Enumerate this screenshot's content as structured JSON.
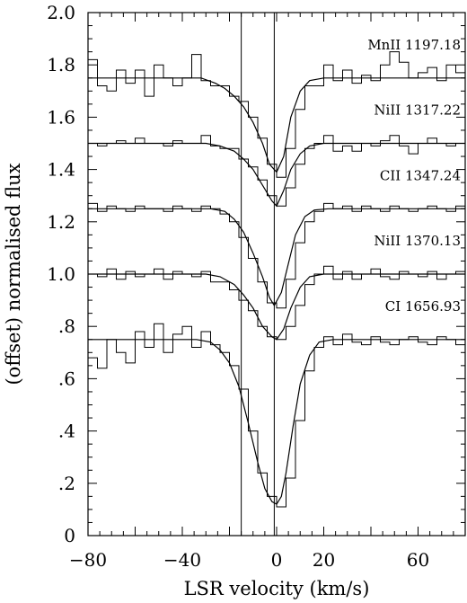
{
  "chart_data": {
    "type": "line",
    "xlabel": "LSR velocity (km/s)",
    "ylabel": "(offset) normalised flux",
    "xlim": [
      -80,
      80
    ],
    "ylim": [
      0,
      2.0
    ],
    "x_ticks": [
      -80,
      -40,
      0,
      20,
      60
    ],
    "x_tick_labels": [
      "−80",
      "−40",
      "0",
      "20",
      "60"
    ],
    "y_ticks": [
      0,
      0.2,
      0.4,
      0.6,
      0.8,
      1.0,
      1.2,
      1.4,
      1.6,
      1.8,
      2.0
    ],
    "y_tick_labels": [
      "0",
      ".2",
      ".4",
      ".6",
      ".8",
      "1.0",
      "1.2",
      "1.4",
      "1.6",
      "1.8",
      "2.0"
    ],
    "vertical_lines": [
      -15,
      -1
    ],
    "series": [
      {
        "name": "MnII 1197.18",
        "continuum": 1.75,
        "model_x": [
          -80,
          -32,
          -26,
          -22,
          -18,
          -14,
          -10,
          -6,
          -3,
          0,
          3,
          6,
          10,
          14,
          20,
          80
        ],
        "model_y": [
          1.75,
          1.75,
          1.73,
          1.71,
          1.68,
          1.64,
          1.58,
          1.5,
          1.42,
          1.39,
          1.45,
          1.6,
          1.7,
          1.74,
          1.75,
          1.75
        ],
        "data_x": [
          -80,
          -76,
          -72,
          -68,
          -64,
          -60,
          -56,
          -52,
          -48,
          -44,
          -40,
          -36,
          -32,
          -28,
          -24,
          -20,
          -16,
          -12,
          -8,
          -4,
          0,
          4,
          8,
          12,
          16,
          20,
          24,
          28,
          32,
          36,
          40,
          44,
          48,
          52,
          56,
          60,
          64,
          68,
          72,
          76
        ],
        "data_y": [
          1.82,
          1.72,
          1.7,
          1.78,
          1.73,
          1.78,
          1.68,
          1.8,
          1.75,
          1.72,
          1.75,
          1.84,
          1.74,
          1.72,
          1.72,
          1.68,
          1.66,
          1.6,
          1.52,
          1.42,
          1.37,
          1.48,
          1.63,
          1.72,
          1.72,
          1.8,
          1.74,
          1.78,
          1.73,
          1.76,
          1.74,
          1.8,
          1.85,
          1.81,
          1.75,
          1.77,
          1.79,
          1.74,
          1.8,
          1.77
        ]
      },
      {
        "name": "NiII 1317.22",
        "continuum": 1.5,
        "model_x": [
          -80,
          -30,
          -24,
          -18,
          -14,
          -10,
          -6,
          -2,
          0,
          3,
          6,
          10,
          14,
          20,
          80
        ],
        "model_y": [
          1.5,
          1.5,
          1.49,
          1.47,
          1.44,
          1.4,
          1.34,
          1.28,
          1.26,
          1.32,
          1.4,
          1.46,
          1.49,
          1.5,
          1.5
        ],
        "data_x": [
          -80,
          -76,
          -72,
          -68,
          -64,
          -60,
          -56,
          -52,
          -48,
          -44,
          -40,
          -36,
          -32,
          -28,
          -24,
          -20,
          -16,
          -12,
          -8,
          -4,
          0,
          4,
          8,
          12,
          16,
          20,
          24,
          28,
          32,
          36,
          40,
          44,
          48,
          52,
          56,
          60,
          64,
          68,
          72,
          76
        ],
        "data_y": [
          1.5,
          1.49,
          1.5,
          1.51,
          1.5,
          1.52,
          1.5,
          1.5,
          1.49,
          1.51,
          1.5,
          1.5,
          1.53,
          1.49,
          1.48,
          1.48,
          1.44,
          1.41,
          1.36,
          1.3,
          1.26,
          1.33,
          1.42,
          1.48,
          1.5,
          1.53,
          1.47,
          1.49,
          1.47,
          1.5,
          1.49,
          1.51,
          1.53,
          1.49,
          1.46,
          1.5,
          1.52,
          1.5,
          1.49,
          1.5
        ]
      },
      {
        "name": "CII 1347.24",
        "continuum": 1.25,
        "model_x": [
          -80,
          -28,
          -22,
          -18,
          -14,
          -10,
          -6,
          -3,
          -1,
          2,
          5,
          8,
          12,
          16,
          22,
          80
        ],
        "model_y": [
          1.25,
          1.25,
          1.24,
          1.21,
          1.16,
          1.08,
          0.99,
          0.91,
          0.88,
          0.93,
          1.04,
          1.15,
          1.22,
          1.245,
          1.25,
          1.25
        ],
        "data_x": [
          -80,
          -76,
          -72,
          -68,
          -64,
          -60,
          -56,
          -52,
          -48,
          -44,
          -40,
          -36,
          -32,
          -28,
          -24,
          -20,
          -16,
          -12,
          -8,
          -4,
          0,
          4,
          8,
          12,
          16,
          20,
          24,
          28,
          32,
          36,
          40,
          44,
          48,
          52,
          56,
          60,
          64,
          68,
          72,
          76
        ],
        "data_y": [
          1.27,
          1.24,
          1.26,
          1.25,
          1.24,
          1.26,
          1.25,
          1.25,
          1.24,
          1.26,
          1.25,
          1.24,
          1.26,
          1.25,
          1.23,
          1.2,
          1.14,
          1.06,
          0.97,
          0.89,
          0.87,
          0.98,
          1.12,
          1.2,
          1.24,
          1.27,
          1.25,
          1.26,
          1.24,
          1.26,
          1.25,
          1.24,
          1.26,
          1.25,
          1.24,
          1.25,
          1.26,
          1.25,
          1.24,
          1.26
        ]
      },
      {
        "name": "NiII 1370.13",
        "continuum": 1.0,
        "model_x": [
          -80,
          -30,
          -24,
          -18,
          -14,
          -10,
          -6,
          -2,
          0,
          3,
          6,
          10,
          14,
          20,
          80
        ],
        "model_y": [
          1.0,
          1.0,
          0.99,
          0.96,
          0.92,
          0.87,
          0.8,
          0.76,
          0.75,
          0.79,
          0.87,
          0.95,
          0.99,
          1.0,
          1.0
        ],
        "data_x": [
          -80,
          -76,
          -72,
          -68,
          -64,
          -60,
          -56,
          -52,
          -48,
          -44,
          -40,
          -36,
          -32,
          -28,
          -24,
          -20,
          -16,
          -12,
          -8,
          -4,
          0,
          4,
          8,
          12,
          16,
          20,
          24,
          28,
          32,
          36,
          40,
          44,
          48,
          52,
          56,
          60,
          64,
          68,
          72,
          76
        ],
        "data_y": [
          1.0,
          0.99,
          1.02,
          0.98,
          1.01,
          0.99,
          1.0,
          1.02,
          0.98,
          1.01,
          1.0,
          0.99,
          1.01,
          0.97,
          0.97,
          0.94,
          0.9,
          0.86,
          0.8,
          0.76,
          0.75,
          0.8,
          0.88,
          0.96,
          1.0,
          1.03,
          0.98,
          1.01,
          0.98,
          1.0,
          1.02,
          0.99,
          0.98,
          1.01,
          1.0,
          0.99,
          1.01,
          0.98,
          1.0,
          1.01
        ]
      },
      {
        "name": "CI 1656.93",
        "continuum": 0.75,
        "model_x": [
          -80,
          -34,
          -28,
          -24,
          -20,
          -16,
          -12,
          -8,
          -5,
          -2,
          0,
          2,
          4,
          7,
          10,
          14,
          18,
          24,
          80
        ],
        "model_y": [
          0.75,
          0.75,
          0.74,
          0.71,
          0.66,
          0.57,
          0.43,
          0.28,
          0.18,
          0.13,
          0.12,
          0.15,
          0.24,
          0.42,
          0.58,
          0.69,
          0.74,
          0.75,
          0.75
        ],
        "data_x": [
          -80,
          -76,
          -72,
          -68,
          -64,
          -60,
          -56,
          -52,
          -48,
          -44,
          -40,
          -36,
          -32,
          -28,
          -24,
          -20,
          -16,
          -12,
          -8,
          -4,
          0,
          4,
          8,
          12,
          16,
          20,
          24,
          28,
          32,
          36,
          40,
          44,
          48,
          52,
          56,
          60,
          64,
          68,
          72,
          76
        ],
        "data_y": [
          0.68,
          0.64,
          0.75,
          0.7,
          0.66,
          0.78,
          0.72,
          0.81,
          0.7,
          0.77,
          0.8,
          0.72,
          0.78,
          0.73,
          0.7,
          0.65,
          0.56,
          0.4,
          0.24,
          0.15,
          0.11,
          0.22,
          0.44,
          0.63,
          0.72,
          0.76,
          0.73,
          0.77,
          0.74,
          0.73,
          0.76,
          0.74,
          0.73,
          0.75,
          0.76,
          0.74,
          0.73,
          0.76,
          0.75,
          0.73
        ]
      }
    ]
  }
}
